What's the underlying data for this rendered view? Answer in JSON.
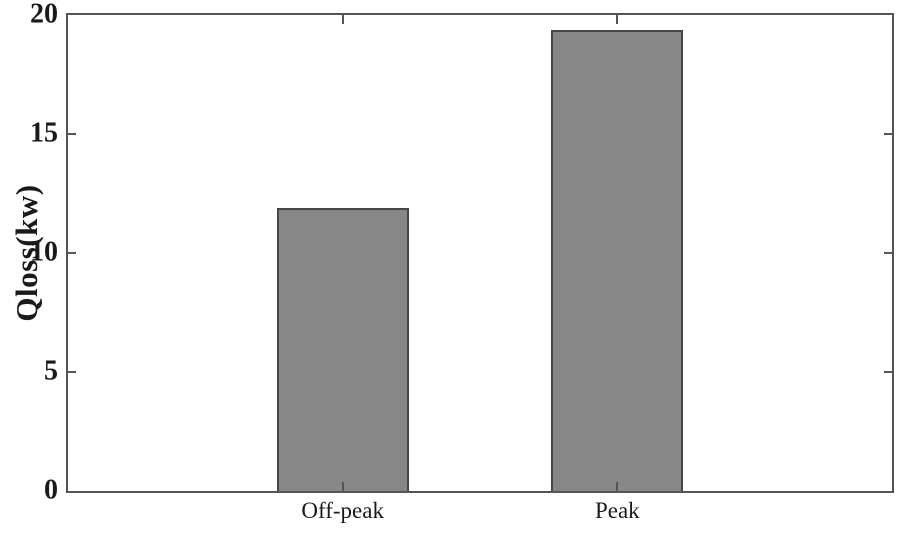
{
  "chart_data": {
    "type": "bar",
    "categories": [
      "Off-peak",
      "Peak"
    ],
    "values": [
      11.9,
      19.35
    ],
    "title": "",
    "xlabel": "",
    "ylabel": "Qloss(kw)",
    "ylim": [
      0,
      20
    ],
    "yticks": [
      0,
      5,
      10,
      15,
      20
    ],
    "grid": false,
    "legend": "none",
    "box": true,
    "tick_direction": "in",
    "colors": {
      "bar_fill": "#878787",
      "bar_edge": "#474747",
      "axis_frame": "#555555",
      "text": "#1a1a1a",
      "background": "#ffffff"
    }
  }
}
